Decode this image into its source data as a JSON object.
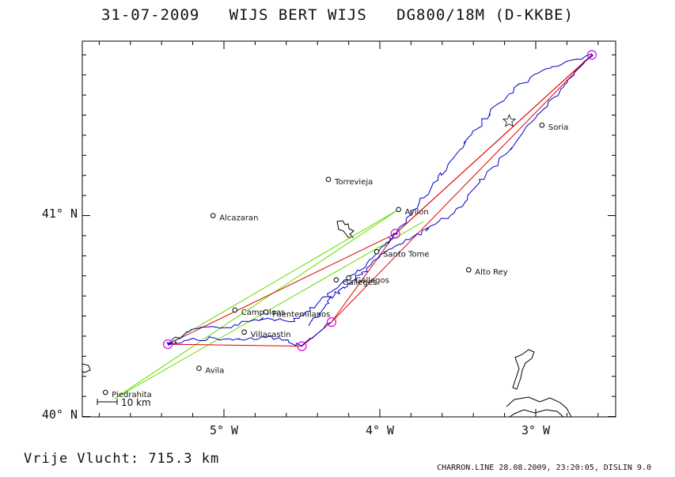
{
  "header": {
    "date": "31-07-2009",
    "pilot": "WIJS BERT WIJS",
    "glider": "DG800/18M (D-KKBE)"
  },
  "footer": {
    "distance_label": "Vrije Vlucht:",
    "distance_value": "715.3 km",
    "credits": "CHARRON.LINE 28.08.2009, 23:20:05, DISLIN 9.0"
  },
  "map": {
    "x_ticks": [
      {
        "lon": -5,
        "label": "5° W"
      },
      {
        "lon": -4,
        "label": "4° W"
      },
      {
        "lon": -3,
        "label": "3° W"
      }
    ],
    "y_ticks": [
      {
        "lat": 41,
        "label": "41° N"
      },
      {
        "lat": 40,
        "label": "40° N"
      }
    ],
    "scale_bar": {
      "label": "10 km"
    },
    "places": [
      {
        "name": "Soria",
        "lon": -2.96,
        "lat": 41.44
      },
      {
        "name": "Torrevieja",
        "lon": -4.33,
        "lat": 41.17
      },
      {
        "name": "Ayllon",
        "lon": -3.88,
        "lat": 41.02
      },
      {
        "name": "Alcazaran",
        "lon": -5.07,
        "lat": 40.99
      },
      {
        "name": "Santo Tome",
        "lon": -4.02,
        "lat": 40.81
      },
      {
        "name": "Alto Rey",
        "lon": -3.43,
        "lat": 40.72
      },
      {
        "name": "Gallegos",
        "lon": -4.2,
        "lat": 40.68
      },
      {
        "name": "Galleges",
        "lon": -4.28,
        "lat": 40.67
      },
      {
        "name": "Campoloas",
        "lon": -4.93,
        "lat": 40.52
      },
      {
        "name": "Fuentemilanos",
        "lon": -4.73,
        "lat": 40.51
      },
      {
        "name": "Villacastin",
        "lon": -4.87,
        "lat": 40.41
      },
      {
        "name": "Avila",
        "lon": -5.16,
        "lat": 40.23
      },
      {
        "name": "Piedrahita",
        "lon": -5.76,
        "lat": 40.11
      }
    ],
    "turnpoints": [
      {
        "lon": -2.64,
        "lat": 41.79
      },
      {
        "lon": -3.9,
        "lat": 40.9
      },
      {
        "lon": -5.36,
        "lat": 40.35
      },
      {
        "lon": -4.5,
        "lat": 40.34
      },
      {
        "lon": -4.31,
        "lat": 40.46
      }
    ],
    "colors": {
      "track": "#0000cc",
      "task": "#e00000",
      "alt_task": "#66dd00",
      "turnpoint": "#dd00dd",
      "coast": "#000000"
    }
  }
}
